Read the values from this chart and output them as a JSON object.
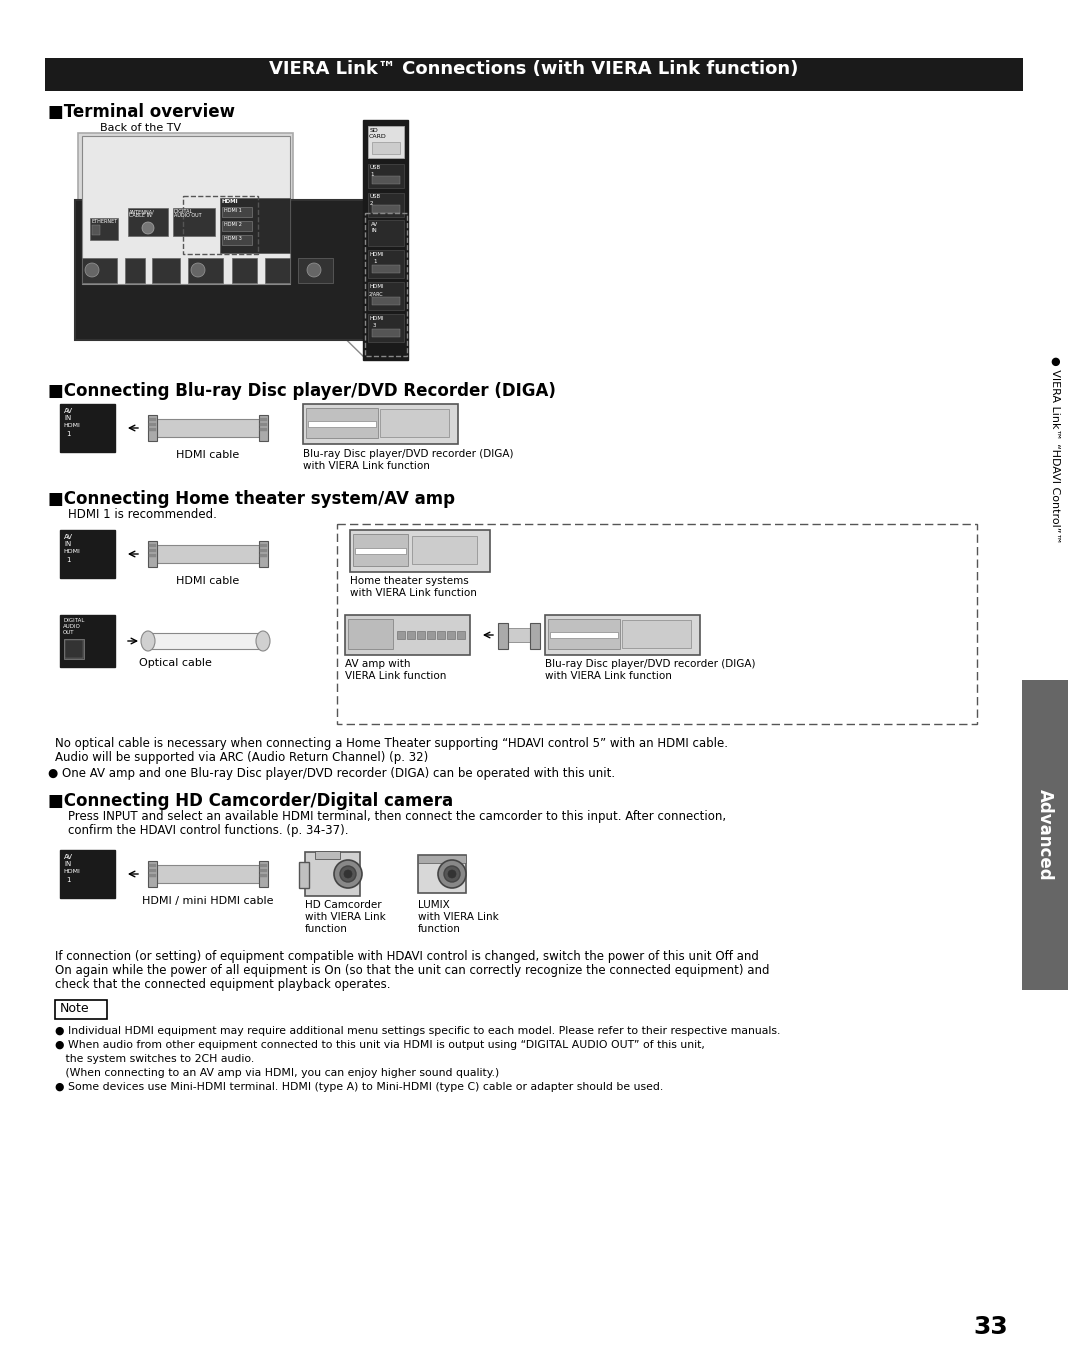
{
  "title": "VIERA Link™ Connections (with VIERA Link function)",
  "title_bg": "#1a1a1a",
  "title_color": "#ffffff",
  "page_bg": "#ffffff",
  "page_number": "33",
  "side_label": "Advanced",
  "side_label2": "● VIERA Link™ “HDAVI Control”™",
  "section1_header": "■Terminal overview",
  "section2_header": "■Connecting Blu-ray Disc player/DVD Recorder (DIGA)",
  "section3_header": "■Connecting Home theater system/AV amp",
  "section3_sub": "HDMI 1 is recommended.",
  "section4_header": "■Connecting HD Camcorder/Digital camera",
  "section4_text1": "Press INPUT and select an available HDMI terminal, then connect the camcorder to this input. After connection,",
  "section4_text2": "confirm the HDAVI control functions. (p. 34-37).",
  "note1_text1": "No optical cable is necessary when connecting a Home Theater supporting “HDAVI control 5” with an HDMI cable.",
  "note1_text2": "Audio will be supported via ARC (Audio Return Channel) (p. 32)",
  "note2_text": "● One AV amp and one Blu-ray Disc player/DVD recorder (DIGA) can be operated with this unit.",
  "note_box_label": "Note",
  "note_line1": "● Individual HDMI equipment may require additional menu settings specific to each model. Please refer to their respective manuals.",
  "note_line2": "● When audio from other equipment connected to this unit via HDMI is output using “DIGITAL AUDIO OUT” of this unit,",
  "note_line2b": "   the system switches to 2CH audio.",
  "note_line2c": "   (When connecting to an AV amp via HDMI, you can enjoy higher sound quality.)",
  "note_line3": "● Some devices use Mini-HDMI terminal. HDMI (type A) to Mini-HDMI (type C) cable or adapter should be used.",
  "hdmi_cable_label": "HDMI cable",
  "optical_cable_label": "Optical cable",
  "hdmi_mini_label": "HDMI / mini HDMI cable",
  "blu_ray_label1_1": "Blu-ray Disc player/DVD recorder (DIGA)",
  "blu_ray_label1_2": "with VIERA Link function",
  "home_theater_label1": "Home theater systems",
  "home_theater_label2": "with VIERA Link function",
  "av_amp_label1": "AV amp with",
  "av_amp_label2": "VIERA Link function",
  "blu_ray_label2_1": "Blu-ray Disc player/DVD recorder (DIGA)",
  "blu_ray_label2_2": "with VIERA Link function",
  "hd_cam_label1": "HD Camcorder",
  "hd_cam_label2": "with VIERA Link",
  "hd_cam_label3": "function",
  "lumix_label1": "LUMIX",
  "lumix_label2": "with VIERA Link",
  "lumix_label3": "function",
  "back_tv_label": "Back of the TV",
  "if_connection_1": "If connection (or setting) of equipment compatible with HDAVI control is changed, switch the power of this unit Off and",
  "if_connection_2": "On again while the power of all equipment is On (so that the unit can correctly recognize the connected equipment) and",
  "if_connection_3": "check that the connected equipment playback operates."
}
